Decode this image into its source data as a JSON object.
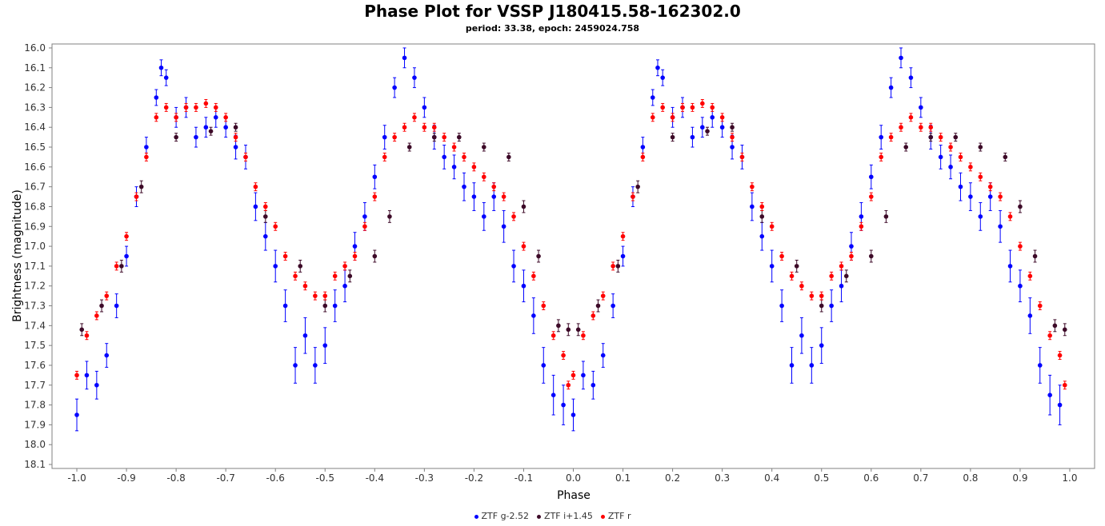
{
  "chart_data": {
    "type": "scatter",
    "title": "Phase Plot for VSSP J180415.58-162302.0",
    "subtitle": "period: 33.38, epoch: 2459024.758",
    "xlabel": "Phase",
    "ylabel": "Brightness (magnitude)",
    "xlim": [
      -1.05,
      1.05
    ],
    "ylim": [
      18.12,
      15.98
    ],
    "y_inverted": true,
    "x_ticks": [
      "-1.0",
      "-0.9",
      "-0.8",
      "-0.7",
      "-0.6",
      "-0.5",
      "-0.4",
      "-0.3",
      "-0.2",
      "-0.1",
      "0.0",
      "0.1",
      "0.2",
      "0.3",
      "0.4",
      "0.5",
      "0.6",
      "0.7",
      "0.8",
      "0.9",
      "1.0"
    ],
    "y_ticks": [
      "16.0",
      "16.1",
      "16.2",
      "16.3",
      "16.4",
      "16.5",
      "16.6",
      "16.7",
      "16.8",
      "16.9",
      "17.0",
      "17.1",
      "17.2",
      "17.3",
      "17.4",
      "17.5",
      "17.6",
      "17.7",
      "17.8",
      "17.9",
      "18.0",
      "18.1"
    ],
    "grid": false,
    "legend_position": "bottom",
    "series": [
      {
        "name": "ZTF g-2.52",
        "color": "#0000ff",
        "x": [
          0.0,
          0.02,
          0.04,
          0.06,
          0.08,
          0.1,
          0.12,
          0.14,
          0.16,
          0.17,
          0.18,
          0.2,
          0.22,
          0.24,
          0.26,
          0.28,
          0.3,
          0.32,
          0.34,
          0.36,
          0.38,
          0.4,
          0.42,
          0.44,
          0.46,
          0.48,
          0.5,
          0.52,
          0.54,
          0.56,
          0.58,
          0.6,
          0.62,
          0.64,
          0.66,
          0.68,
          0.7,
          0.72,
          0.74,
          0.76,
          0.78,
          0.8,
          0.82,
          0.84,
          0.86,
          0.88,
          0.9,
          0.92,
          0.94,
          0.96,
          0.98
        ],
        "y": [
          17.85,
          17.65,
          17.7,
          17.55,
          17.3,
          17.05,
          16.75,
          16.5,
          16.25,
          16.1,
          16.15,
          16.35,
          16.3,
          16.45,
          16.4,
          16.35,
          16.4,
          16.5,
          16.55,
          16.8,
          16.95,
          17.1,
          17.3,
          17.6,
          17.45,
          17.6,
          17.5,
          17.3,
          17.2,
          17.0,
          16.85,
          16.65,
          16.45,
          16.2,
          16.05,
          16.15,
          16.3,
          16.45,
          16.55,
          16.6,
          16.7,
          16.75,
          16.85,
          16.75,
          16.9,
          17.1,
          17.2,
          17.35,
          17.6,
          17.75,
          17.8
        ],
        "err": [
          0.08,
          0.07,
          0.07,
          0.06,
          0.06,
          0.05,
          0.05,
          0.05,
          0.04,
          0.04,
          0.04,
          0.05,
          0.05,
          0.05,
          0.05,
          0.05,
          0.05,
          0.06,
          0.06,
          0.07,
          0.07,
          0.08,
          0.08,
          0.09,
          0.09,
          0.09,
          0.09,
          0.08,
          0.08,
          0.07,
          0.07,
          0.06,
          0.06,
          0.05,
          0.05,
          0.05,
          0.05,
          0.06,
          0.06,
          0.06,
          0.07,
          0.07,
          0.07,
          0.07,
          0.08,
          0.08,
          0.08,
          0.09,
          0.09,
          0.1,
          0.1
        ]
      },
      {
        "name": "ZTF i+1.45",
        "color": "#3d0a28",
        "x": [
          0.01,
          0.05,
          0.09,
          0.13,
          0.2,
          0.27,
          0.32,
          0.38,
          0.45,
          0.5,
          0.55,
          0.6,
          0.63,
          0.67,
          0.72,
          0.77,
          0.82,
          0.87,
          0.9,
          0.93,
          0.97,
          0.99
        ],
        "y": [
          17.42,
          17.3,
          17.1,
          16.7,
          16.45,
          16.42,
          16.4,
          16.85,
          17.1,
          17.3,
          17.15,
          17.05,
          16.85,
          16.5,
          16.45,
          16.45,
          16.5,
          16.55,
          16.8,
          17.05,
          17.4,
          17.42
        ],
        "err": [
          0.03,
          0.03,
          0.03,
          0.03,
          0.02,
          0.02,
          0.02,
          0.03,
          0.03,
          0.03,
          0.03,
          0.03,
          0.03,
          0.02,
          0.02,
          0.02,
          0.02,
          0.02,
          0.03,
          0.03,
          0.03,
          0.03
        ]
      },
      {
        "name": "ZTF r",
        "color": "#ff0000",
        "x": [
          0.0,
          0.02,
          0.04,
          0.06,
          0.08,
          0.1,
          0.12,
          0.14,
          0.16,
          0.18,
          0.2,
          0.22,
          0.24,
          0.26,
          0.28,
          0.3,
          0.32,
          0.34,
          0.36,
          0.38,
          0.4,
          0.42,
          0.44,
          0.46,
          0.48,
          0.5,
          0.52,
          0.54,
          0.56,
          0.58,
          0.6,
          0.62,
          0.64,
          0.66,
          0.68,
          0.7,
          0.72,
          0.74,
          0.76,
          0.78,
          0.8,
          0.82,
          0.84,
          0.86,
          0.88,
          0.9,
          0.92,
          0.94,
          0.96,
          0.98,
          0.99
        ],
        "y": [
          17.65,
          17.45,
          17.35,
          17.25,
          17.1,
          16.95,
          16.75,
          16.55,
          16.35,
          16.3,
          16.35,
          16.3,
          16.3,
          16.28,
          16.3,
          16.35,
          16.45,
          16.55,
          16.7,
          16.8,
          16.9,
          17.05,
          17.15,
          17.2,
          17.25,
          17.25,
          17.15,
          17.1,
          17.05,
          16.9,
          16.75,
          16.55,
          16.45,
          16.4,
          16.35,
          16.4,
          16.4,
          16.45,
          16.5,
          16.55,
          16.6,
          16.65,
          16.7,
          16.75,
          16.85,
          17.0,
          17.15,
          17.3,
          17.45,
          17.55,
          17.7
        ],
        "err": [
          0.02,
          0.02,
          0.02,
          0.02,
          0.02,
          0.02,
          0.02,
          0.02,
          0.02,
          0.02,
          0.02,
          0.02,
          0.02,
          0.02,
          0.02,
          0.02,
          0.02,
          0.02,
          0.02,
          0.02,
          0.02,
          0.02,
          0.02,
          0.02,
          0.02,
          0.02,
          0.02,
          0.02,
          0.02,
          0.02,
          0.02,
          0.02,
          0.02,
          0.02,
          0.02,
          0.02,
          0.02,
          0.02,
          0.02,
          0.02,
          0.02,
          0.02,
          0.02,
          0.02,
          0.02,
          0.02,
          0.02,
          0.02,
          0.02,
          0.02,
          0.02
        ]
      }
    ]
  }
}
